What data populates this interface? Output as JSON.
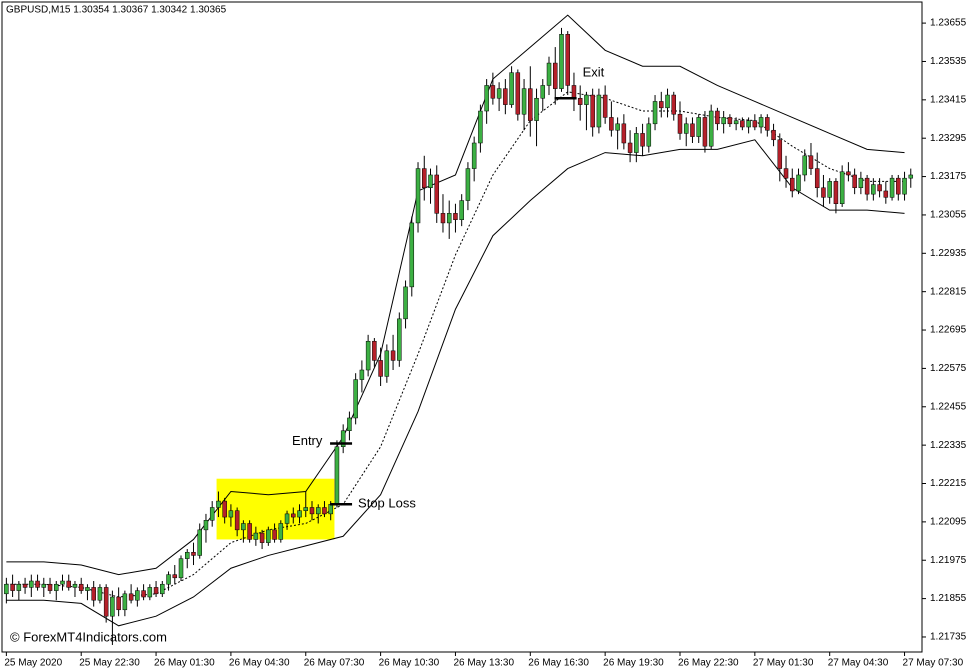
{
  "chart_data": {
    "type": "candlestick",
    "title": "GBPUSD,M15  1.30354 1.30367 1.30342 1.30365",
    "watermark": "© ForexMT4Indicators.com",
    "bull_color": "#3cb043",
    "bear_color": "#b5202a",
    "band_color": "#000000",
    "highlight_color": "#ffff00",
    "xlim": [
      -0.7,
      146.8
    ],
    "xticks": [
      {
        "value": 0,
        "label": "25 May 2020"
      },
      {
        "value": 12,
        "label": "25 May 22:30"
      },
      {
        "value": 24,
        "label": "26 May 01:30"
      },
      {
        "value": 36,
        "label": "26 May 04:30"
      },
      {
        "value": 48,
        "label": "26 May 07:30"
      },
      {
        "value": 60,
        "label": "26 May 10:30"
      },
      {
        "value": 72,
        "label": "26 May 13:30"
      },
      {
        "value": 84,
        "label": "26 May 16:30"
      },
      {
        "value": 96,
        "label": "26 May 19:30"
      },
      {
        "value": 108,
        "label": "26 May 22:30"
      },
      {
        "value": 120,
        "label": "27 May 01:30"
      },
      {
        "value": 132,
        "label": "27 May 04:30"
      },
      {
        "value": 144,
        "label": "27 May 07:30"
      }
    ],
    "ylim": [
      1.21688,
      1.23721
    ],
    "yticks": [
      1.23655,
      1.23535,
      1.23415,
      1.23295,
      1.23175,
      1.23055,
      1.22935,
      1.22815,
      1.22695,
      1.22575,
      1.22455,
      1.22335,
      1.22215,
      1.22095,
      1.21975,
      1.21855,
      1.21735
    ],
    "ohlc": [
      [
        1.2187,
        1.2192,
        1.2184,
        1.219
      ],
      [
        1.219,
        1.2193,
        1.2186,
        1.2188
      ],
      [
        1.2188,
        1.2191,
        1.2185,
        1.219
      ],
      [
        1.219,
        1.2192,
        1.2187,
        1.2189
      ],
      [
        1.2189,
        1.2193,
        1.2186,
        1.2191
      ],
      [
        1.2191,
        1.2193,
        1.2188,
        1.2189
      ],
      [
        1.2189,
        1.2192,
        1.2186,
        1.219
      ],
      [
        1.219,
        1.2192,
        1.2187,
        1.2188
      ],
      [
        1.2188,
        1.2191,
        1.2185,
        1.219
      ],
      [
        1.219,
        1.2193,
        1.2188,
        1.2191
      ],
      [
        1.2191,
        1.2193,
        1.2188,
        1.2189
      ],
      [
        1.2189,
        1.2191,
        1.2186,
        1.219
      ],
      [
        1.219,
        1.2192,
        1.2187,
        1.2188
      ],
      [
        1.2188,
        1.219,
        1.2185,
        1.2189
      ],
      [
        1.2189,
        1.2191,
        1.2183,
        1.2185
      ],
      [
        1.2185,
        1.219,
        1.2184,
        1.2189
      ],
      [
        1.2189,
        1.219,
        1.2178,
        1.218
      ],
      [
        1.218,
        1.2188,
        1.2171,
        1.2186
      ],
      [
        1.2186,
        1.2189,
        1.218,
        1.2182
      ],
      [
        1.2182,
        1.2188,
        1.218,
        1.2187
      ],
      [
        1.2187,
        1.219,
        1.2184,
        1.2185
      ],
      [
        1.2185,
        1.2189,
        1.2183,
        1.2188
      ],
      [
        1.2188,
        1.219,
        1.2185,
        1.2186
      ],
      [
        1.2186,
        1.219,
        1.2185,
        1.2189
      ],
      [
        1.2189,
        1.2191,
        1.2186,
        1.2187
      ],
      [
        1.2187,
        1.2191,
        1.2186,
        1.219
      ],
      [
        1.219,
        1.2194,
        1.2188,
        1.2193
      ],
      [
        1.2193,
        1.2196,
        1.219,
        1.2192
      ],
      [
        1.2192,
        1.2199,
        1.2191,
        1.2198
      ],
      [
        1.2198,
        1.2201,
        1.2195,
        1.22
      ],
      [
        1.22,
        1.2203,
        1.2196,
        1.2199
      ],
      [
        1.2199,
        1.2209,
        1.2198,
        1.2207
      ],
      [
        1.2207,
        1.2212,
        1.2203,
        1.221
      ],
      [
        1.221,
        1.2216,
        1.2208,
        1.2214
      ],
      [
        1.2214,
        1.2219,
        1.2211,
        1.2216
      ],
      [
        1.2216,
        1.2217,
        1.2209,
        1.2211
      ],
      [
        1.2211,
        1.2215,
        1.2208,
        1.2213
      ],
      [
        1.2213,
        1.2214,
        1.2205,
        1.2207
      ],
      [
        1.2207,
        1.221,
        1.2203,
        1.2209
      ],
      [
        1.2209,
        1.221,
        1.2203,
        1.2204
      ],
      [
        1.2204,
        1.2208,
        1.2202,
        1.2206
      ],
      [
        1.2206,
        1.2207,
        1.2201,
        1.2203
      ],
      [
        1.2203,
        1.2208,
        1.2202,
        1.2207
      ],
      [
        1.2207,
        1.2209,
        1.2203,
        1.2204
      ],
      [
        1.2204,
        1.221,
        1.2203,
        1.2209
      ],
      [
        1.2209,
        1.2213,
        1.2207,
        1.2212
      ],
      [
        1.2212,
        1.2214,
        1.2209,
        1.2211
      ],
      [
        1.2211,
        1.2215,
        1.2209,
        1.2213
      ],
      [
        1.2213,
        1.2219,
        1.2211,
        1.2214
      ],
      [
        1.2214,
        1.2216,
        1.221,
        1.2212
      ],
      [
        1.2212,
        1.2215,
        1.2209,
        1.2214
      ],
      [
        1.2214,
        1.2216,
        1.2211,
        1.2212
      ],
      [
        1.2212,
        1.2216,
        1.221,
        1.2215
      ],
      [
        1.2215,
        1.2235,
        1.2214,
        1.2233
      ],
      [
        1.2233,
        1.224,
        1.2231,
        1.2238
      ],
      [
        1.2238,
        1.2244,
        1.2235,
        1.2242
      ],
      [
        1.2242,
        1.2256,
        1.224,
        1.2254
      ],
      [
        1.2254,
        1.226,
        1.225,
        1.2257
      ],
      [
        1.2257,
        1.2268,
        1.2255,
        1.2266
      ],
      [
        1.2266,
        1.2267,
        1.2258,
        1.226
      ],
      [
        1.226,
        1.2264,
        1.2252,
        1.2255
      ],
      [
        1.2255,
        1.2265,
        1.2253,
        1.2263
      ],
      [
        1.2263,
        1.2268,
        1.2257,
        1.226
      ],
      [
        1.226,
        1.2275,
        1.2258,
        1.2273
      ],
      [
        1.2273,
        1.2285,
        1.227,
        1.2283
      ],
      [
        1.2283,
        1.2305,
        1.228,
        1.2303
      ],
      [
        1.2303,
        1.2322,
        1.23,
        1.232
      ],
      [
        1.232,
        1.2324,
        1.231,
        1.2314
      ],
      [
        1.2314,
        1.232,
        1.2309,
        1.2318
      ],
      [
        1.2318,
        1.2321,
        1.2303,
        1.2306
      ],
      [
        1.2306,
        1.2312,
        1.23,
        1.2303
      ],
      [
        1.2303,
        1.231,
        1.2298,
        1.2306
      ],
      [
        1.2306,
        1.2309,
        1.23,
        1.2304
      ],
      [
        1.2304,
        1.2312,
        1.2302,
        1.231
      ],
      [
        1.231,
        1.2322,
        1.2307,
        1.232
      ],
      [
        1.232,
        1.233,
        1.2316,
        1.2328
      ],
      [
        1.2328,
        1.234,
        1.2325,
        1.2338
      ],
      [
        1.2338,
        1.2348,
        1.2334,
        1.2346
      ],
      [
        1.2346,
        1.235,
        1.234,
        1.2342
      ],
      [
        1.2342,
        1.2347,
        1.2338,
        1.2345
      ],
      [
        1.2345,
        1.2348,
        1.2337,
        1.234
      ],
      [
        1.234,
        1.2352,
        1.2339,
        1.235
      ],
      [
        1.235,
        1.2351,
        1.2335,
        1.2337
      ],
      [
        1.2337,
        1.2348,
        1.2332,
        1.2345
      ],
      [
        1.2345,
        1.2352,
        1.233,
        1.2335
      ],
      [
        1.2335,
        1.2345,
        1.2327,
        1.2342
      ],
      [
        1.2342,
        1.2348,
        1.2338,
        1.2346
      ],
      [
        1.2346,
        1.2355,
        1.2343,
        1.2353
      ],
      [
        1.2353,
        1.2358,
        1.234,
        1.2345
      ],
      [
        1.2345,
        1.2364,
        1.2344,
        1.2362
      ],
      [
        1.2362,
        1.2363,
        1.2343,
        1.2346
      ],
      [
        1.2346,
        1.235,
        1.2338,
        1.2342
      ],
      [
        1.2342,
        1.2346,
        1.2335,
        1.234
      ],
      [
        1.234,
        1.2344,
        1.2332,
        1.2343
      ],
      [
        1.2343,
        1.2345,
        1.233,
        1.2333
      ],
      [
        1.2333,
        1.2345,
        1.2331,
        1.2343
      ],
      [
        1.2343,
        1.2346,
        1.2334,
        1.2336
      ],
      [
        1.2336,
        1.2341,
        1.233,
        1.2332
      ],
      [
        1.2332,
        1.2336,
        1.2326,
        1.2334
      ],
      [
        1.2334,
        1.2337,
        1.2326,
        1.2328
      ],
      [
        1.2328,
        1.2332,
        1.2322,
        1.2325
      ],
      [
        1.2325,
        1.2333,
        1.2322,
        1.2331
      ],
      [
        1.2331,
        1.2334,
        1.2324,
        1.2327
      ],
      [
        1.2327,
        1.2336,
        1.2325,
        1.2334
      ],
      [
        1.2334,
        1.2343,
        1.2332,
        1.2341
      ],
      [
        1.2341,
        1.2344,
        1.2336,
        1.2339
      ],
      [
        1.2339,
        1.2345,
        1.2336,
        1.2343
      ],
      [
        1.2343,
        1.2344,
        1.2335,
        1.2337
      ],
      [
        1.2337,
        1.2341,
        1.2329,
        1.2331
      ],
      [
        1.2331,
        1.2336,
        1.2327,
        1.2334
      ],
      [
        1.2334,
        1.2336,
        1.2328,
        1.233
      ],
      [
        1.233,
        1.2337,
        1.2328,
        1.2336
      ],
      [
        1.2336,
        1.2338,
        1.2325,
        1.2327
      ],
      [
        1.2327,
        1.234,
        1.2326,
        1.2338
      ],
      [
        1.2338,
        1.2339,
        1.2332,
        1.2334
      ],
      [
        1.2334,
        1.2338,
        1.2331,
        1.2336
      ],
      [
        1.2336,
        1.2337,
        1.2333,
        1.2334
      ],
      [
        1.2334,
        1.2336,
        1.2332,
        1.2335
      ],
      [
        1.2335,
        1.2336,
        1.2332,
        1.2333
      ],
      [
        1.2333,
        1.2336,
        1.2331,
        1.2335
      ],
      [
        1.2335,
        1.2337,
        1.2332,
        1.2333
      ],
      [
        1.2333,
        1.2337,
        1.2331,
        1.2336
      ],
      [
        1.2336,
        1.2337,
        1.233,
        1.2332
      ],
      [
        1.2332,
        1.2334,
        1.2327,
        1.2329
      ],
      [
        1.2329,
        1.2331,
        1.2316,
        1.232
      ],
      [
        1.232,
        1.2324,
        1.2314,
        1.2317
      ],
      [
        1.2317,
        1.232,
        1.2311,
        1.2313
      ],
      [
        1.2313,
        1.232,
        1.2312,
        1.2318
      ],
      [
        1.2318,
        1.2326,
        1.2316,
        1.2324
      ],
      [
        1.2324,
        1.2328,
        1.2318,
        1.232
      ],
      [
        1.232,
        1.2325,
        1.2311,
        1.2314
      ],
      [
        1.2314,
        1.2318,
        1.2308,
        1.2311
      ],
      [
        1.2311,
        1.2317,
        1.2309,
        1.2316
      ],
      [
        1.2316,
        1.2317,
        1.2306,
        1.2309
      ],
      [
        1.2309,
        1.2321,
        1.2308,
        1.2319
      ],
      [
        1.2319,
        1.2322,
        1.2316,
        1.2318
      ],
      [
        1.2318,
        1.232,
        1.2312,
        1.2314
      ],
      [
        1.2314,
        1.2319,
        1.2312,
        1.2317
      ],
      [
        1.2317,
        1.2318,
        1.231,
        1.2312
      ],
      [
        1.2312,
        1.2317,
        1.231,
        1.2315
      ],
      [
        1.2315,
        1.2317,
        1.2311,
        1.2313
      ],
      [
        1.2313,
        1.2316,
        1.2309,
        1.2311
      ],
      [
        1.2311,
        1.2318,
        1.231,
        1.2317
      ],
      [
        1.2317,
        1.2318,
        1.231,
        1.2312
      ],
      [
        1.2312,
        1.2319,
        1.231,
        1.2317
      ],
      [
        1.2317,
        1.232,
        1.2314,
        1.2318
      ]
    ],
    "band_x": [
      0,
      6,
      12,
      18,
      24,
      30,
      36,
      42,
      48,
      54,
      60,
      66,
      72,
      78,
      84,
      90,
      96,
      102,
      108,
      114,
      120,
      126,
      132,
      138,
      144
    ],
    "bands": [
      {
        "dashed": false,
        "values": [
          1.2197,
          1.2197,
          1.2196,
          1.2193,
          1.2195,
          1.2204,
          1.2219,
          1.2218,
          1.2219,
          1.2236,
          1.2262,
          1.2313,
          1.2318,
          1.2348,
          1.2358,
          1.2368,
          1.2357,
          1.2352,
          1.2352,
          1.2346,
          1.2341,
          1.2336,
          1.2331,
          1.2326,
          1.2325
        ]
      },
      {
        "dashed": true,
        "values": [
          1.219,
          1.219,
          1.2189,
          1.2186,
          1.2187,
          1.2193,
          1.2203,
          1.2207,
          1.2209,
          1.2215,
          1.2233,
          1.2262,
          1.2293,
          1.2318,
          1.2335,
          1.2344,
          1.2342,
          1.2338,
          1.2338,
          1.2336,
          1.2335,
          1.2327,
          1.232,
          1.2316,
          1.2316
        ]
      },
      {
        "dashed": false,
        "values": [
          1.2185,
          1.2185,
          1.2184,
          1.2177,
          1.218,
          1.2186,
          1.2195,
          1.2199,
          1.2202,
          1.2205,
          1.2218,
          1.2244,
          1.2276,
          1.2299,
          1.231,
          1.232,
          1.2325,
          1.2324,
          1.2326,
          1.2326,
          1.2329,
          1.2314,
          1.2307,
          1.2307,
          1.2306
        ]
      }
    ],
    "highlight": {
      "x": [
        33.7,
        52.6
      ],
      "y": [
        1.2204,
        1.2223
      ]
    },
    "annotations": [
      {
        "text": "Entry",
        "x": 53.5,
        "y": 1.2234
      },
      {
        "text": "Stop Loss",
        "x": 53.5,
        "y": 1.2215
      },
      {
        "text": "Exit",
        "x": 89.5,
        "y": 1.2342
      }
    ]
  }
}
